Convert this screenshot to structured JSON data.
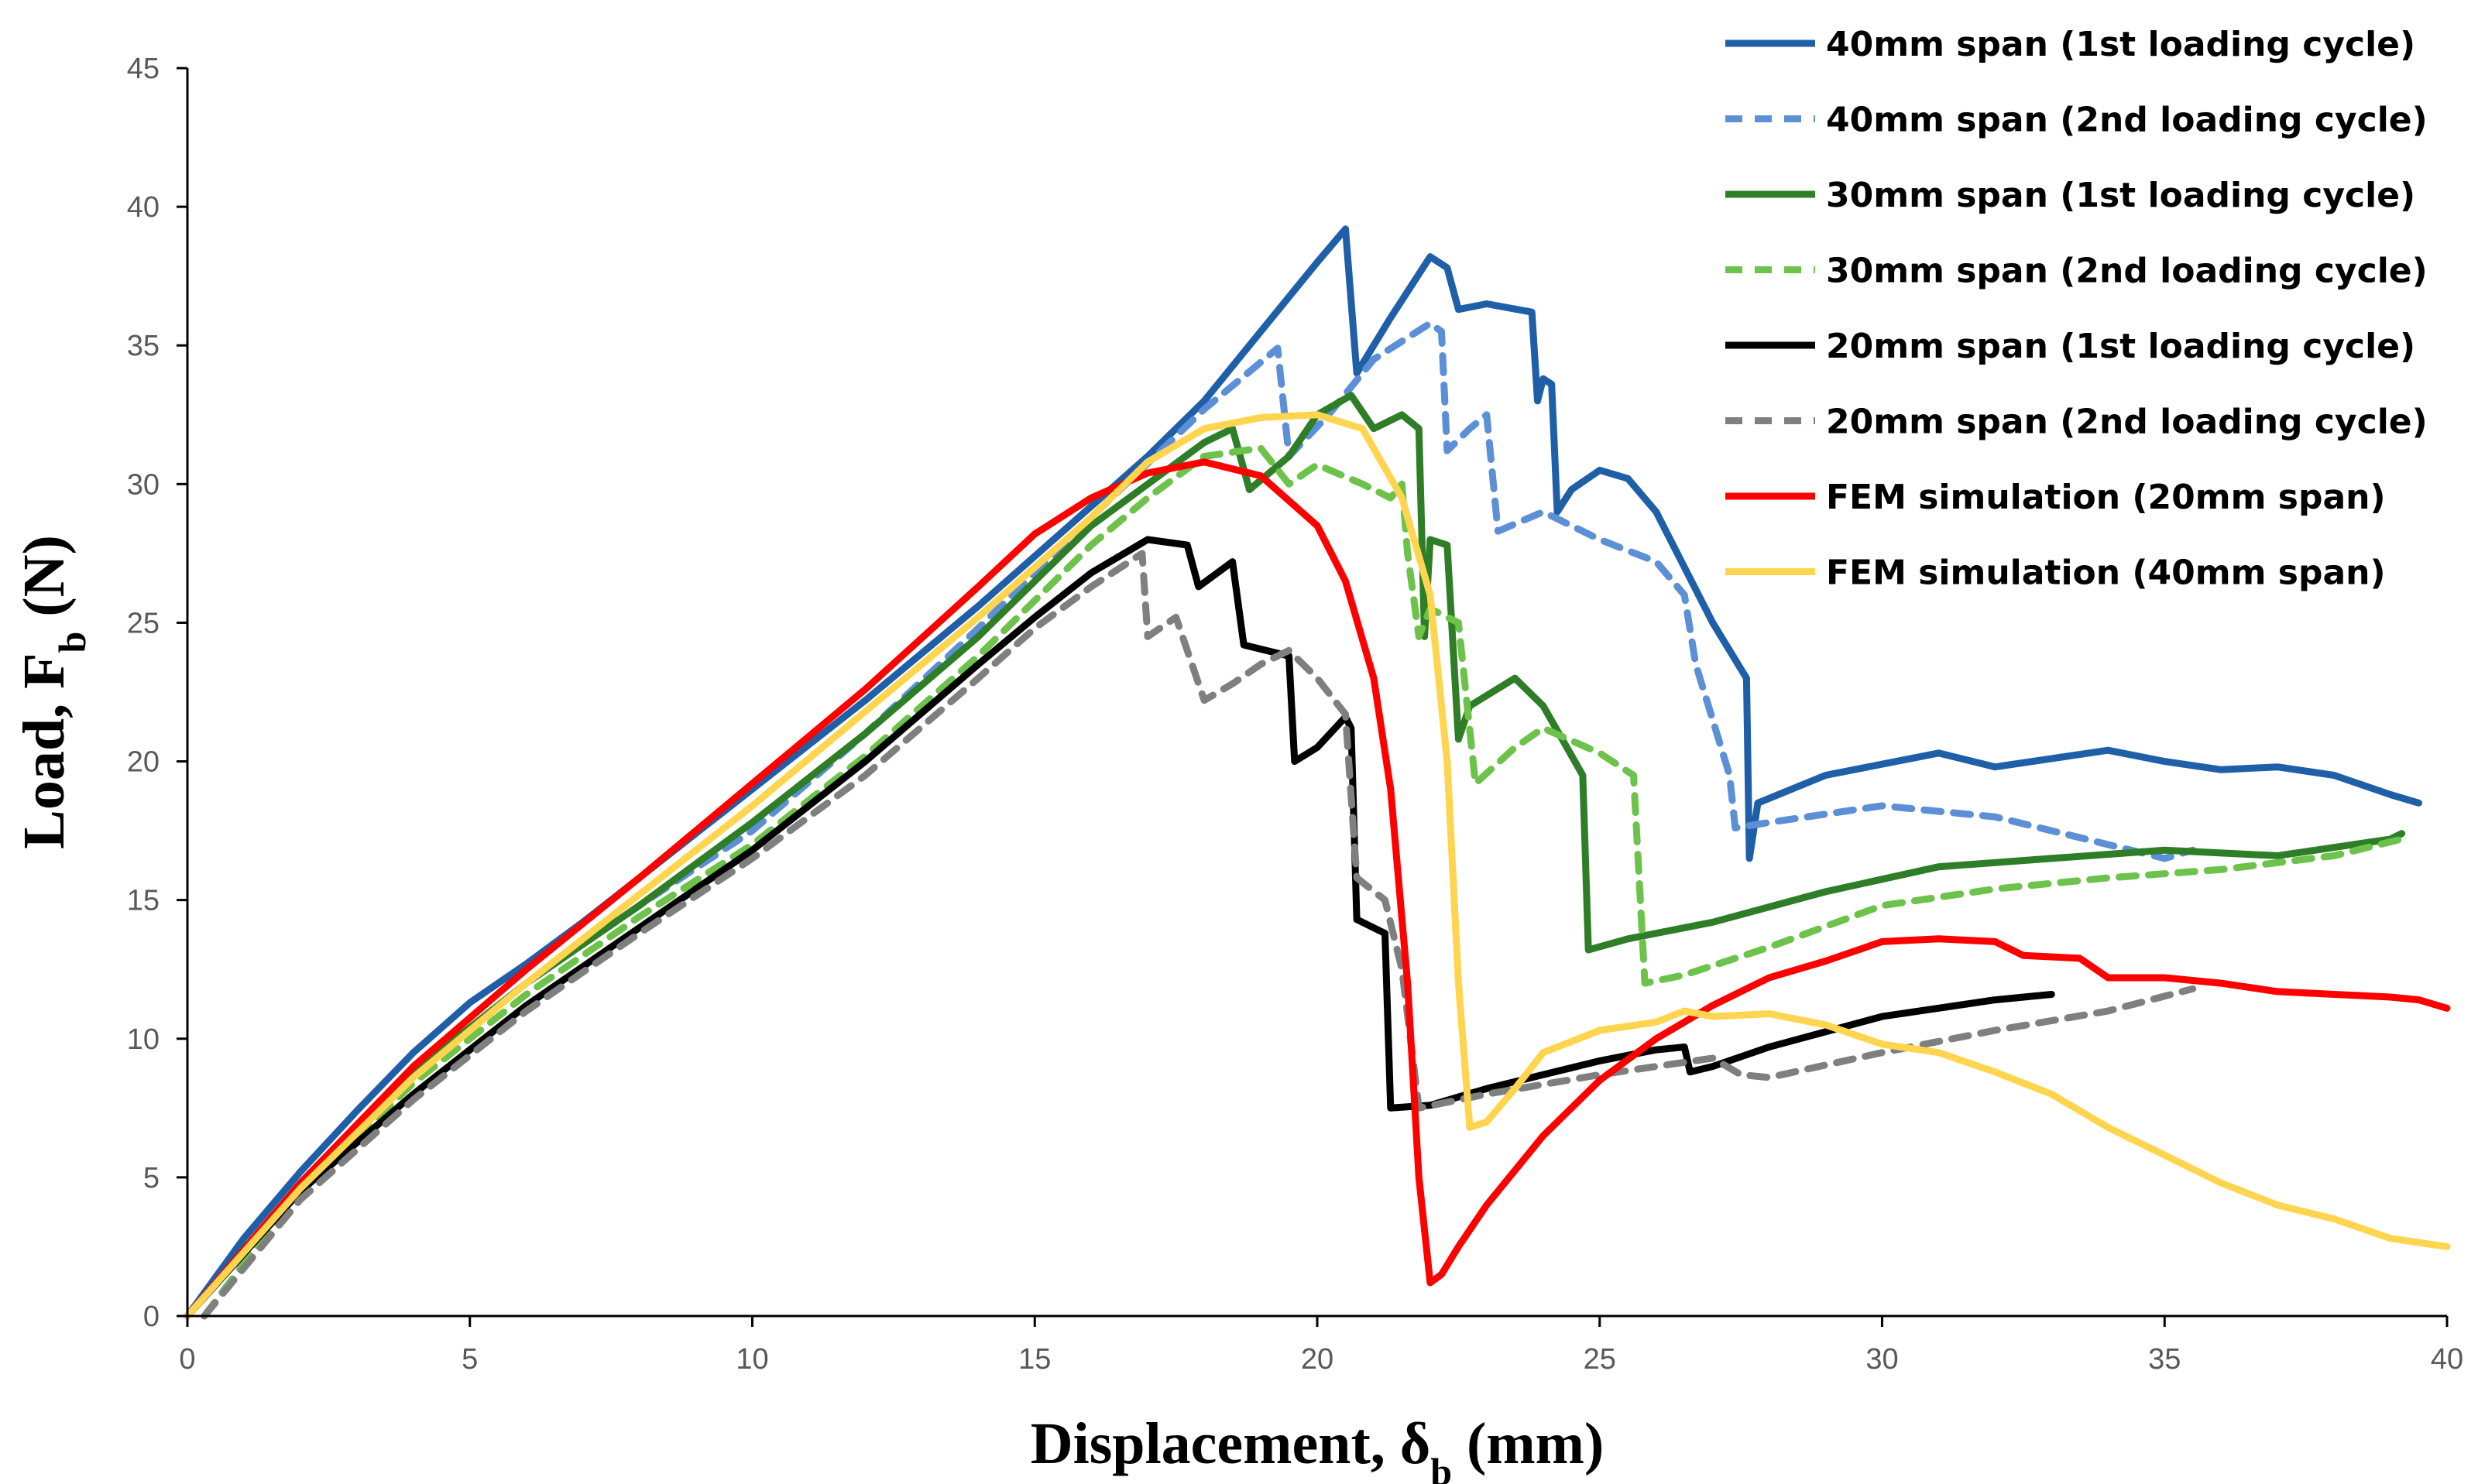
{
  "chart_data": {
    "type": "line",
    "title": "",
    "xlabel": "Displacement, δb (mm)",
    "ylabel": "Load, Fb (N)",
    "xlabel_parts": {
      "main": "Displacement, δ",
      "sub": "b",
      "tail": " (mm)"
    },
    "ylabel_parts": {
      "main": "Load, F",
      "sub": "b",
      "tail": " (N)"
    },
    "xlim": [
      0,
      40
    ],
    "ylim": [
      0,
      45
    ],
    "xticks": [
      0,
      5,
      10,
      15,
      20,
      25,
      30,
      35,
      40
    ],
    "yticks": [
      0,
      5,
      10,
      15,
      20,
      25,
      30,
      35,
      40,
      45
    ],
    "grid": false,
    "legend_position": "top-right",
    "series": [
      {
        "name": "40mm span (1st loading cycle)",
        "color": "#1F5FA8",
        "dash": "solid",
        "points": [
          [
            0,
            0
          ],
          [
            1,
            2.8
          ],
          [
            2,
            5.2
          ],
          [
            3,
            7.4
          ],
          [
            4,
            9.5
          ],
          [
            5,
            11.3
          ],
          [
            6,
            12.7
          ],
          [
            7,
            14.2
          ],
          [
            8,
            15.8
          ],
          [
            10,
            19.0
          ],
          [
            12,
            22.2
          ],
          [
            14,
            25.6
          ],
          [
            16,
            29.2
          ],
          [
            17,
            31.0
          ],
          [
            18,
            33.0
          ],
          [
            19,
            35.5
          ],
          [
            20,
            38.0
          ],
          [
            20.5,
            39.2
          ],
          [
            20.7,
            34.0
          ],
          [
            21.3,
            36.0
          ],
          [
            22.0,
            38.2
          ],
          [
            22.3,
            37.8
          ],
          [
            22.5,
            36.3
          ],
          [
            23.0,
            36.5
          ],
          [
            23.8,
            36.2
          ],
          [
            23.9,
            33.0
          ],
          [
            24.0,
            33.8
          ],
          [
            24.15,
            33.6
          ],
          [
            24.25,
            29.0
          ],
          [
            24.5,
            29.8
          ],
          [
            25.0,
            30.5
          ],
          [
            25.5,
            30.2
          ],
          [
            26.0,
            29.0
          ],
          [
            27.0,
            25.0
          ],
          [
            27.6,
            23.0
          ],
          [
            27.65,
            16.5
          ],
          [
            27.8,
            18.5
          ],
          [
            29,
            19.5
          ],
          [
            31,
            20.3
          ],
          [
            32,
            19.8
          ],
          [
            34,
            20.4
          ],
          [
            35,
            20.0
          ],
          [
            36,
            19.7
          ],
          [
            37,
            19.8
          ],
          [
            38,
            19.5
          ],
          [
            39,
            18.8
          ],
          [
            39.5,
            18.5
          ]
        ]
      },
      {
        "name": "40mm span (2nd loading cycle)",
        "color": "#5B8FD6",
        "dash": "22,16",
        "points": [
          [
            0.3,
            0
          ],
          [
            2,
            4.6
          ],
          [
            4,
            8.8
          ],
          [
            6,
            12.0
          ],
          [
            8,
            14.8
          ],
          [
            10,
            17.5
          ],
          [
            12,
            21.0
          ],
          [
            14,
            24.8
          ],
          [
            16,
            28.8
          ],
          [
            18,
            32.7
          ],
          [
            19.3,
            34.9
          ],
          [
            19.5,
            31.0
          ],
          [
            20.2,
            32.5
          ],
          [
            21,
            34.5
          ],
          [
            22,
            35.8
          ],
          [
            22.2,
            35.5
          ],
          [
            22.3,
            31.2
          ],
          [
            22.7,
            32.0
          ],
          [
            23,
            32.5
          ],
          [
            23.2,
            28.3
          ],
          [
            24,
            29.0
          ],
          [
            25,
            28.0
          ],
          [
            26,
            27.2
          ],
          [
            26.5,
            26.0
          ],
          [
            26.7,
            23.5
          ],
          [
            27.0,
            21.5
          ],
          [
            27.3,
            19.5
          ],
          [
            27.4,
            17.6
          ],
          [
            28,
            17.8
          ],
          [
            30,
            18.4
          ],
          [
            32,
            18.0
          ],
          [
            34,
            17.0
          ],
          [
            35,
            16.5
          ],
          [
            35.5,
            16.8
          ]
        ]
      },
      {
        "name": "30mm span (1st loading cycle)",
        "color": "#2E7D27",
        "dash": "solid",
        "points": [
          [
            0,
            0
          ],
          [
            2,
            4.8
          ],
          [
            4,
            8.8
          ],
          [
            6,
            12.0
          ],
          [
            8,
            14.8
          ],
          [
            10,
            17.8
          ],
          [
            12,
            21.0
          ],
          [
            14,
            24.5
          ],
          [
            16,
            28.5
          ],
          [
            18,
            31.5
          ],
          [
            18.5,
            32.0
          ],
          [
            18.8,
            29.8
          ],
          [
            19.5,
            31.0
          ],
          [
            20,
            32.5
          ],
          [
            20.6,
            33.2
          ],
          [
            21,
            32.0
          ],
          [
            21.5,
            32.5
          ],
          [
            21.8,
            32.0
          ],
          [
            21.9,
            24.5
          ],
          [
            22,
            28.0
          ],
          [
            22.3,
            27.8
          ],
          [
            22.5,
            20.8
          ],
          [
            22.7,
            22.0
          ],
          [
            23.5,
            23.0
          ],
          [
            24,
            22.0
          ],
          [
            24.7,
            19.5
          ],
          [
            24.8,
            13.2
          ],
          [
            25.5,
            13.6
          ],
          [
            27,
            14.2
          ],
          [
            29,
            15.3
          ],
          [
            31,
            16.2
          ],
          [
            33,
            16.5
          ],
          [
            35,
            16.8
          ],
          [
            37,
            16.6
          ],
          [
            39,
            17.2
          ],
          [
            39.2,
            17.4
          ]
        ]
      },
      {
        "name": "30mm span (2nd loading cycle)",
        "color": "#6CC24A",
        "dash": "22,16",
        "points": [
          [
            0.3,
            0
          ],
          [
            2,
            4.5
          ],
          [
            4,
            8.4
          ],
          [
            6,
            11.6
          ],
          [
            8,
            14.4
          ],
          [
            10,
            17.0
          ],
          [
            12,
            20.2
          ],
          [
            14,
            23.8
          ],
          [
            16,
            27.8
          ],
          [
            17,
            29.5
          ],
          [
            18,
            31.0
          ],
          [
            19,
            31.3
          ],
          [
            19.5,
            30.0
          ],
          [
            20,
            30.7
          ],
          [
            20.8,
            30.0
          ],
          [
            21.3,
            29.5
          ],
          [
            21.5,
            30.0
          ],
          [
            21.6,
            27.5
          ],
          [
            21.8,
            24.5
          ],
          [
            22,
            25.5
          ],
          [
            22.5,
            25.0
          ],
          [
            22.8,
            19.2
          ],
          [
            23.5,
            20.5
          ],
          [
            24,
            21.2
          ],
          [
            25,
            20.3
          ],
          [
            25.6,
            19.5
          ],
          [
            25.8,
            12.0
          ],
          [
            26.5,
            12.3
          ],
          [
            28,
            13.3
          ],
          [
            30,
            14.8
          ],
          [
            32,
            15.4
          ],
          [
            34,
            15.8
          ],
          [
            36,
            16.1
          ],
          [
            38,
            16.6
          ],
          [
            39.2,
            17.2
          ]
        ]
      },
      {
        "name": "20mm span (1st loading cycle)",
        "color": "#000000",
        "dash": "solid",
        "points": [
          [
            0,
            0
          ],
          [
            2,
            4.5
          ],
          [
            4,
            8.0
          ],
          [
            6,
            11.2
          ],
          [
            8,
            14.0
          ],
          [
            10,
            16.8
          ],
          [
            12,
            20.0
          ],
          [
            14,
            23.5
          ],
          [
            15,
            25.2
          ],
          [
            16,
            26.8
          ],
          [
            17,
            28.0
          ],
          [
            17.7,
            27.8
          ],
          [
            17.9,
            26.3
          ],
          [
            18.5,
            27.2
          ],
          [
            18.7,
            24.2
          ],
          [
            19.5,
            23.8
          ],
          [
            19.6,
            20.0
          ],
          [
            20,
            20.5
          ],
          [
            20.5,
            21.6
          ],
          [
            20.6,
            21.2
          ],
          [
            20.7,
            14.3
          ],
          [
            21.2,
            13.8
          ],
          [
            21.3,
            7.5
          ],
          [
            22,
            7.6
          ],
          [
            23,
            8.2
          ],
          [
            24,
            8.7
          ],
          [
            25,
            9.2
          ],
          [
            26,
            9.6
          ],
          [
            26.5,
            9.7
          ],
          [
            26.6,
            8.8
          ],
          [
            27,
            9.0
          ],
          [
            28,
            9.7
          ],
          [
            30,
            10.8
          ],
          [
            32,
            11.4
          ],
          [
            33,
            11.6
          ]
        ]
      },
      {
        "name": "20mm span (2nd loading cycle)",
        "color": "#7F7F7F",
        "dash": "22,16",
        "points": [
          [
            0.3,
            0
          ],
          [
            2,
            4.2
          ],
          [
            4,
            7.8
          ],
          [
            6,
            11.0
          ],
          [
            8,
            13.8
          ],
          [
            10,
            16.5
          ],
          [
            12,
            19.5
          ],
          [
            14,
            23.0
          ],
          [
            15,
            24.8
          ],
          [
            16,
            26.3
          ],
          [
            16.9,
            27.5
          ],
          [
            17.0,
            24.5
          ],
          [
            17.5,
            25.2
          ],
          [
            18.0,
            22.2
          ],
          [
            18.5,
            22.8
          ],
          [
            19,
            23.5
          ],
          [
            19.5,
            24.0
          ],
          [
            20,
            23.0
          ],
          [
            20.5,
            21.7
          ],
          [
            20.7,
            15.8
          ],
          [
            21.2,
            15.0
          ],
          [
            21.5,
            12.5
          ],
          [
            21.8,
            7.5
          ],
          [
            23,
            8.0
          ],
          [
            25,
            8.7
          ],
          [
            27,
            9.3
          ],
          [
            27.5,
            8.7
          ],
          [
            28,
            8.6
          ],
          [
            30,
            9.5
          ],
          [
            32,
            10.3
          ],
          [
            34,
            11.0
          ],
          [
            35.5,
            11.8
          ]
        ]
      },
      {
        "name": "FEM simulation (20mm span)",
        "color": "#FF0000",
        "dash": "solid",
        "points": [
          [
            0,
            0
          ],
          [
            2,
            4.8
          ],
          [
            4,
            9.0
          ],
          [
            6,
            12.5
          ],
          [
            8,
            15.8
          ],
          [
            10,
            19.2
          ],
          [
            12,
            22.6
          ],
          [
            14,
            26.3
          ],
          [
            15,
            28.2
          ],
          [
            16,
            29.5
          ],
          [
            17,
            30.4
          ],
          [
            18,
            30.8
          ],
          [
            19,
            30.3
          ],
          [
            20,
            28.5
          ],
          [
            20.5,
            26.5
          ],
          [
            21,
            23.0
          ],
          [
            21.3,
            19.0
          ],
          [
            21.6,
            12.0
          ],
          [
            21.8,
            5.0
          ],
          [
            22.0,
            1.2
          ],
          [
            22.2,
            1.5
          ],
          [
            22.5,
            2.5
          ],
          [
            23,
            4.0
          ],
          [
            24,
            6.5
          ],
          [
            25,
            8.5
          ],
          [
            26,
            10.0
          ],
          [
            27,
            11.2
          ],
          [
            28,
            12.2
          ],
          [
            29,
            12.8
          ],
          [
            30,
            13.5
          ],
          [
            31,
            13.6
          ],
          [
            32,
            13.5
          ],
          [
            32.5,
            13.0
          ],
          [
            33.5,
            12.9
          ],
          [
            34,
            12.2
          ],
          [
            35,
            12.2
          ],
          [
            36,
            12.0
          ],
          [
            37,
            11.7
          ],
          [
            38,
            11.6
          ],
          [
            39,
            11.5
          ],
          [
            39.5,
            11.4
          ],
          [
            40,
            11.1
          ]
        ]
      },
      {
        "name": "FEM simulation (40mm span)",
        "color": "#FFD54F",
        "dash": "solid",
        "points": [
          [
            0,
            0
          ],
          [
            2,
            4.6
          ],
          [
            4,
            8.6
          ],
          [
            6,
            12.0
          ],
          [
            8,
            15.2
          ],
          [
            10,
            18.4
          ],
          [
            12,
            21.8
          ],
          [
            14,
            25.2
          ],
          [
            16,
            28.8
          ],
          [
            17,
            30.8
          ],
          [
            18,
            32.0
          ],
          [
            19,
            32.4
          ],
          [
            20,
            32.5
          ],
          [
            20.8,
            32.0
          ],
          [
            21.5,
            29.5
          ],
          [
            22,
            26.0
          ],
          [
            22.3,
            20.0
          ],
          [
            22.5,
            12.0
          ],
          [
            22.7,
            6.8
          ],
          [
            23,
            7.0
          ],
          [
            23.5,
            8.2
          ],
          [
            24,
            9.5
          ],
          [
            25,
            10.3
          ],
          [
            26,
            10.6
          ],
          [
            26.5,
            11.0
          ],
          [
            27,
            10.8
          ],
          [
            28,
            10.9
          ],
          [
            29,
            10.5
          ],
          [
            30,
            9.8
          ],
          [
            31,
            9.5
          ],
          [
            32,
            8.8
          ],
          [
            33,
            8.0
          ],
          [
            34,
            6.8
          ],
          [
            35,
            5.8
          ],
          [
            36,
            4.8
          ],
          [
            37,
            4.0
          ],
          [
            38,
            3.5
          ],
          [
            39,
            2.8
          ],
          [
            40,
            2.5
          ]
        ]
      }
    ]
  }
}
